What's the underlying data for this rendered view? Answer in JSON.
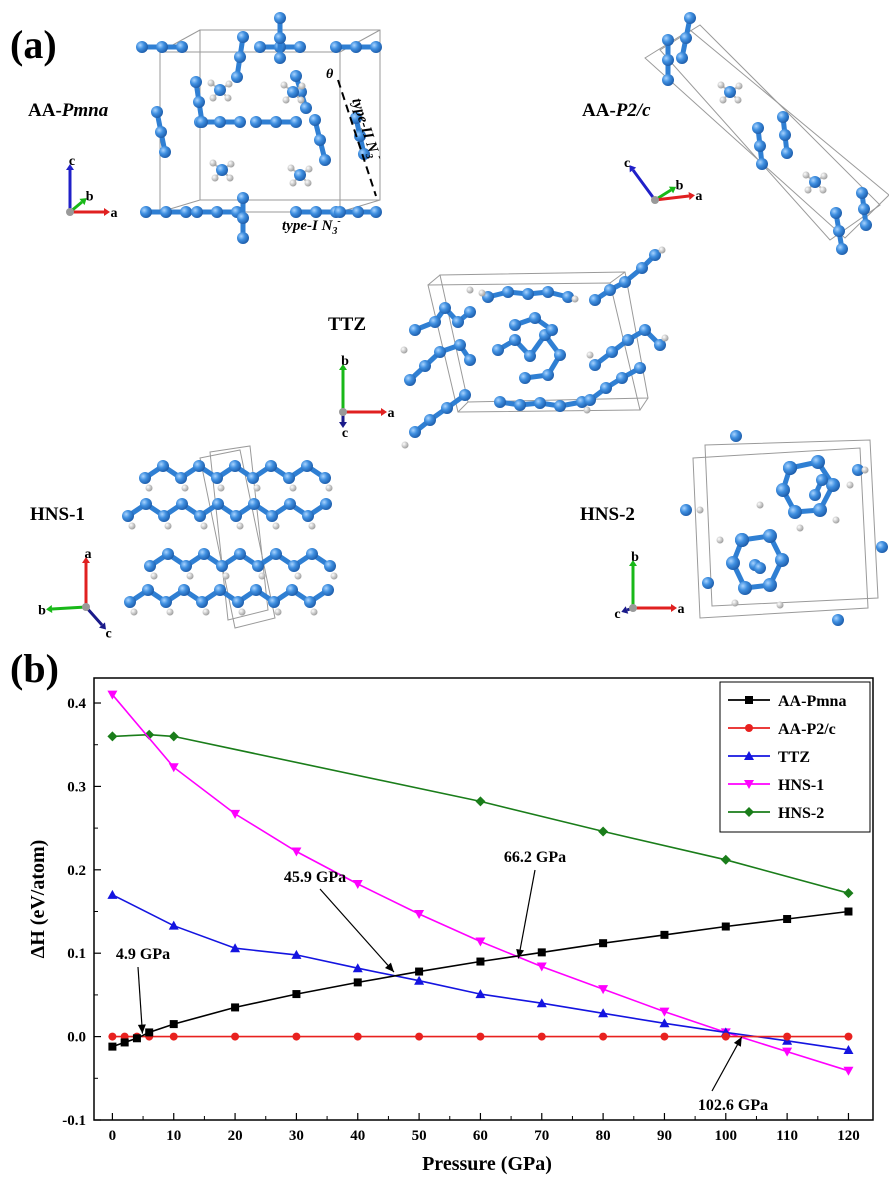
{
  "panel_a": {
    "label": "(a)",
    "structures": [
      {
        "name": "AA-",
        "name_italic": "Pmna",
        "axes": [
          "c",
          "b",
          "a"
        ]
      },
      {
        "name": "AA-",
        "name_italic": "P2/c",
        "axes": [
          "c",
          "b",
          "a"
        ]
      },
      {
        "name": "TTZ",
        "name_italic": "",
        "axes": [
          "b",
          "c",
          "a"
        ]
      },
      {
        "name": "HNS-1",
        "name_italic": "",
        "axes": [
          "a",
          "b",
          "c"
        ]
      },
      {
        "name": "HNS-2",
        "name_italic": "",
        "axes": [
          "b",
          "c",
          "a"
        ]
      }
    ],
    "annotations": {
      "theta": "θ",
      "type_ii": "type-II N",
      "type_i": "type-I N",
      "sub": "3",
      "sup": "-"
    }
  },
  "panel_b": {
    "label": "(b)",
    "colors": {
      "AA-Pmna": "#000000",
      "AA-P2/c": "#e8211f",
      "TTZ": "#1414e0",
      "HNS-1": "#ff00ff",
      "HNS-2": "#1a7d1a"
    },
    "markers": {
      "AA-Pmna": "square",
      "AA-P2/c": "circle",
      "TTZ": "triangle-up",
      "HNS-1": "triangle-down",
      "HNS-2": "diamond"
    }
  },
  "chart_data": {
    "type": "line",
    "xlabel": "Pressure (GPa)",
    "ylabel": "ΔH (eV/atom)",
    "xlim": [
      -3,
      124
    ],
    "ylim": [
      -0.1,
      0.43
    ],
    "xticks": [
      0,
      10,
      20,
      30,
      40,
      50,
      60,
      70,
      80,
      90,
      100,
      110,
      120
    ],
    "yticks": [
      -0.1,
      0.0,
      0.1,
      0.2,
      0.3,
      0.4
    ],
    "ytick_labels": [
      "-0.1",
      "0.0",
      "0.1",
      "0.2",
      "0.3",
      "0.4"
    ],
    "legend_position": "top-right",
    "series": [
      {
        "name": "AA-Pmna",
        "x": [
          0,
          2,
          4,
          6,
          10,
          20,
          30,
          40,
          50,
          60,
          70,
          80,
          90,
          100,
          110,
          120
        ],
        "y": [
          -0.012,
          -0.007,
          -0.002,
          0.005,
          0.015,
          0.035,
          0.051,
          0.065,
          0.078,
          0.09,
          0.101,
          0.112,
          0.122,
          0.132,
          0.141,
          0.15
        ]
      },
      {
        "name": "AA-P2/c",
        "x": [
          0,
          2,
          4,
          6,
          10,
          20,
          30,
          40,
          50,
          60,
          70,
          80,
          90,
          100,
          110,
          120
        ],
        "y": [
          0,
          0,
          0,
          0,
          0,
          0,
          0,
          0,
          0,
          0,
          0,
          0,
          0,
          0,
          0,
          0
        ]
      },
      {
        "name": "TTZ",
        "x": [
          0,
          10,
          20,
          30,
          40,
          50,
          60,
          70,
          80,
          90,
          100,
          110,
          120
        ],
        "y": [
          0.17,
          0.133,
          0.106,
          0.098,
          0.082,
          0.067,
          0.051,
          0.04,
          0.028,
          0.016,
          0.005,
          -0.005,
          -0.016
        ]
      },
      {
        "name": "HNS-1",
        "x": [
          0,
          10,
          20,
          30,
          40,
          50,
          60,
          70,
          80,
          90,
          100,
          110,
          120
        ],
        "y": [
          0.41,
          0.323,
          0.267,
          0.222,
          0.183,
          0.147,
          0.114,
          0.084,
          0.057,
          0.03,
          0.005,
          -0.018,
          -0.041
        ]
      },
      {
        "name": "HNS-2",
        "x": [
          0,
          6,
          10,
          60,
          80,
          100,
          120
        ],
        "y": [
          0.36,
          0.362,
          0.36,
          0.282,
          0.246,
          0.212,
          0.172
        ]
      }
    ],
    "annotations": [
      {
        "text": "4.9 GPa",
        "x": 4.9,
        "y": 0.0
      },
      {
        "text": "45.9 GPa",
        "x": 45.9,
        "y": 0.075
      },
      {
        "text": "66.2 GPa",
        "x": 66.2,
        "y": 0.096
      },
      {
        "text": "102.6 GPa",
        "x": 102.6,
        "y": 0.002
      }
    ]
  }
}
